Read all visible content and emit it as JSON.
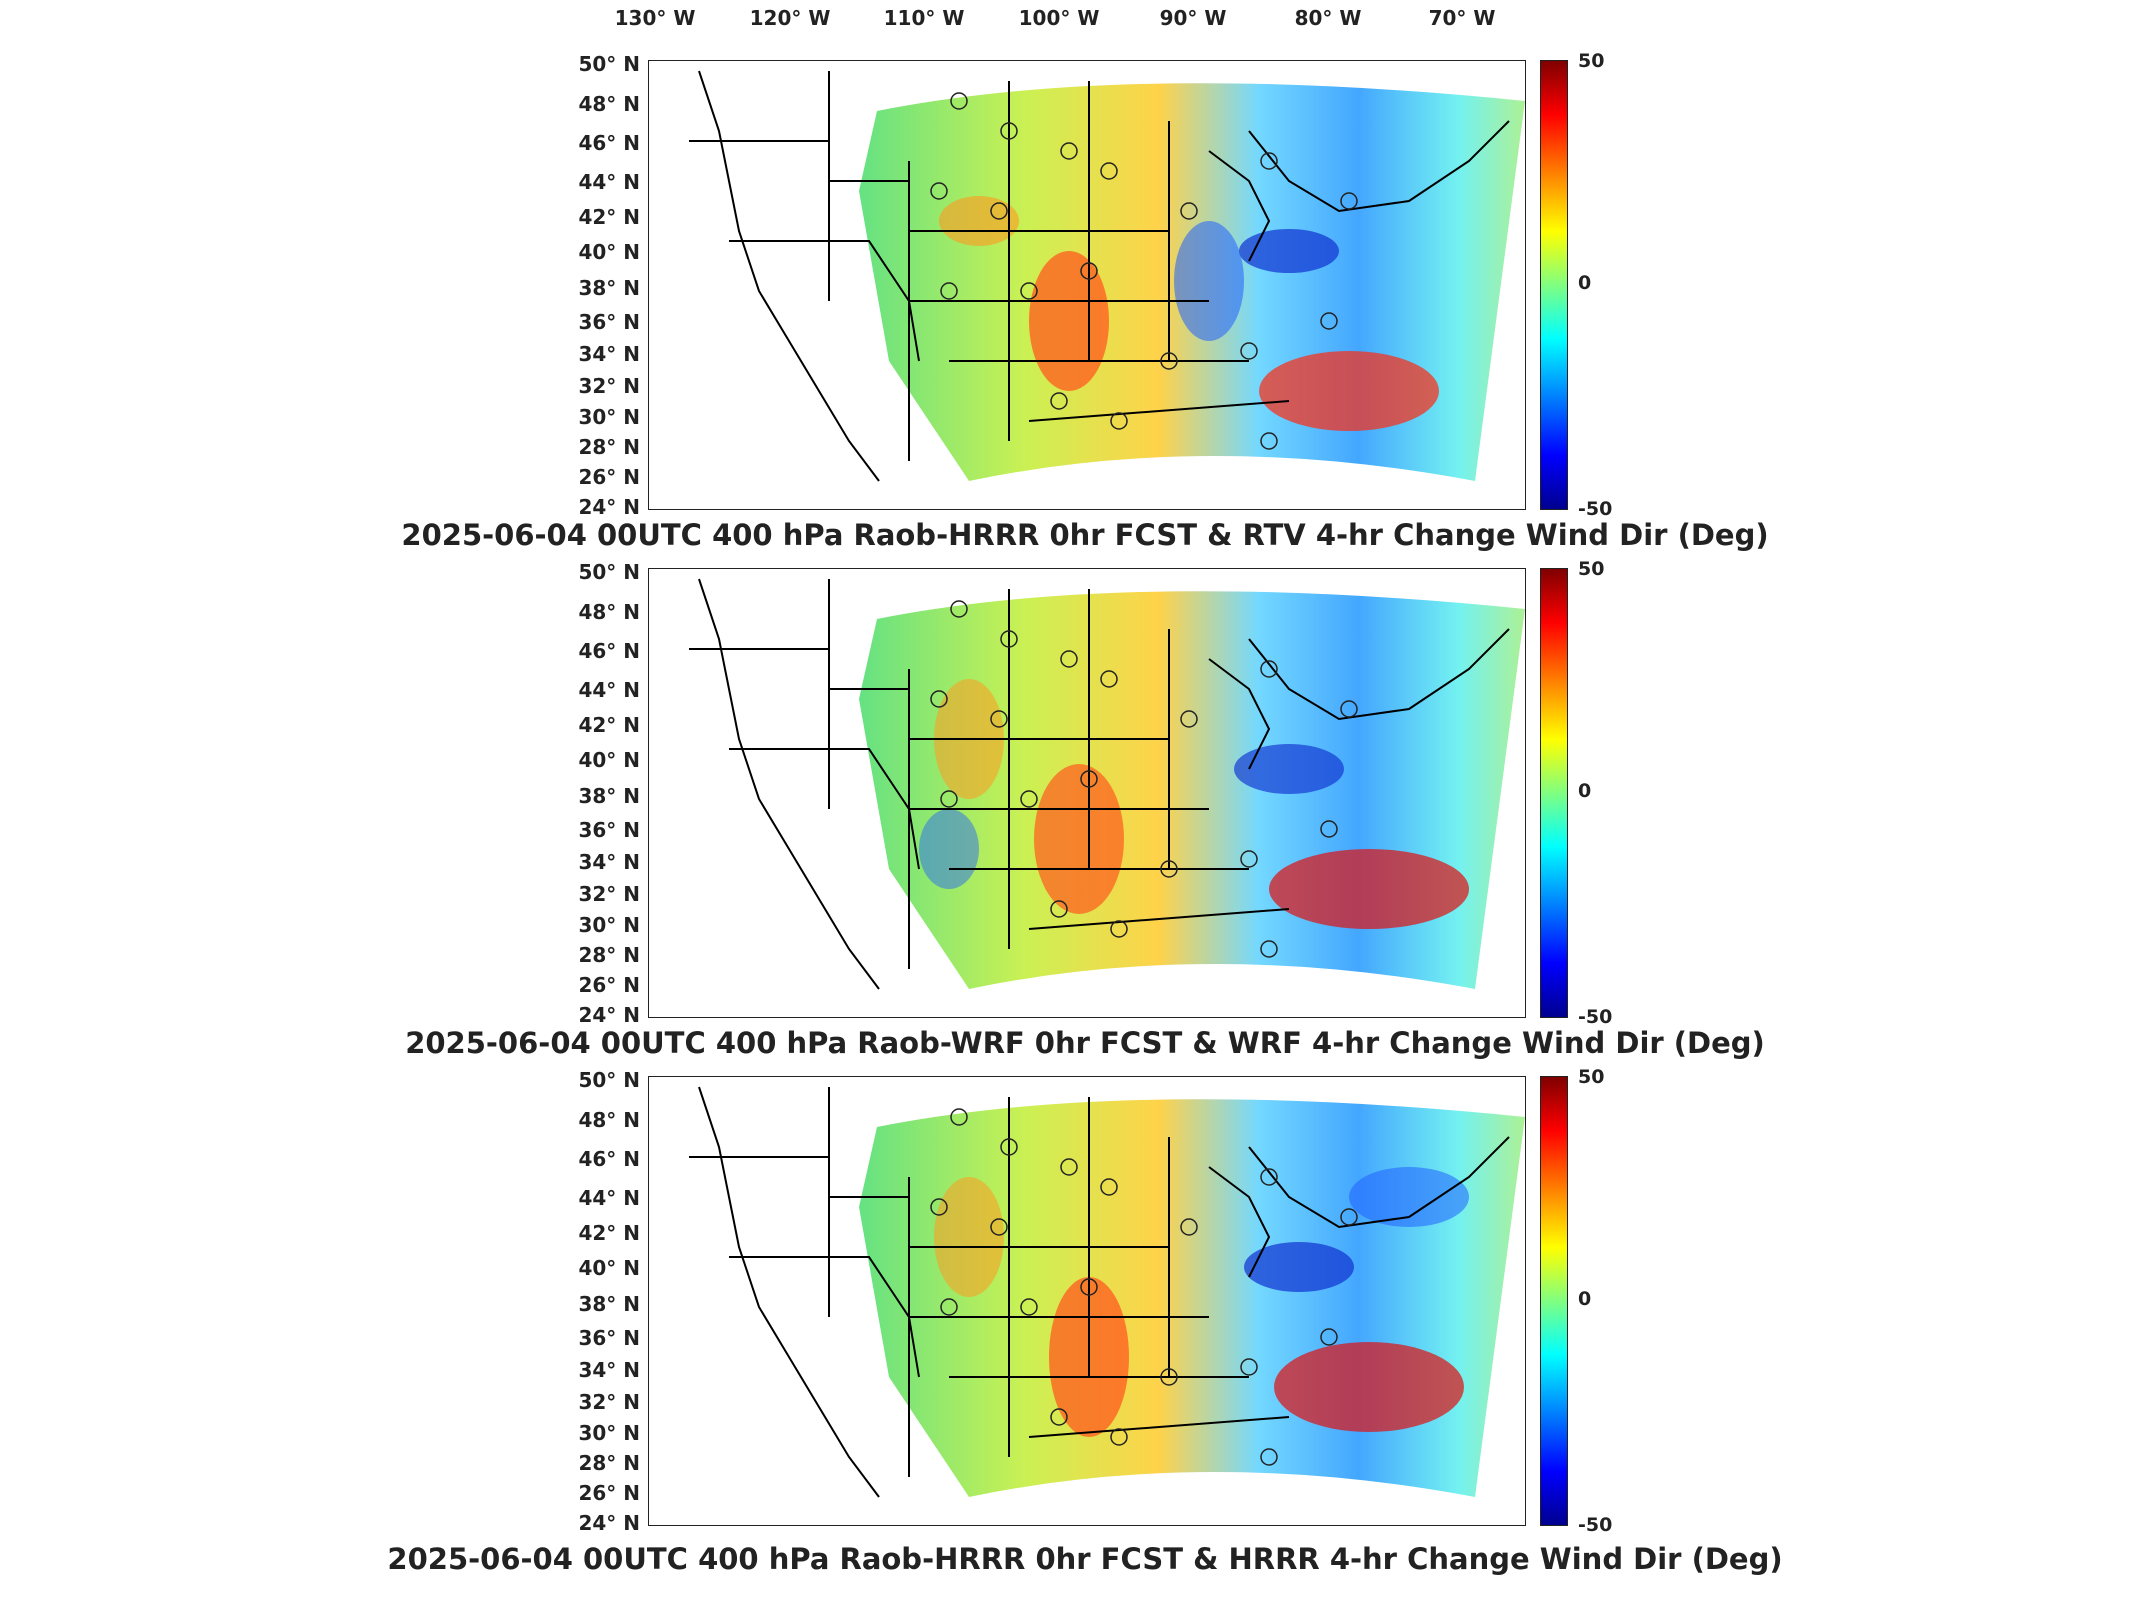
{
  "longitude_labels": [
    "130° W",
    "120° W",
    "110° W",
    "100° W",
    "90° W",
    "80° W",
    "70° W"
  ],
  "latitude_labels": [
    "50° N",
    "48° N",
    "46° N",
    "44° N",
    "42° N",
    "40° N",
    "38° N",
    "36° N",
    "34° N",
    "32° N",
    "30° N",
    "28° N",
    "26° N",
    "24° N"
  ],
  "colorbar": {
    "max_label": "50",
    "mid_label": "0",
    "min_label": "-50",
    "colors": [
      "#800000",
      "#ff0000",
      "#ff8000",
      "#ffff00",
      "#80ff80",
      "#00ffff",
      "#0080ff",
      "#0000ff",
      "#00008f"
    ]
  },
  "panels": [
    {
      "title": "2025-06-04 00UTC 400 hPa Raob-HRRR 0hr FCST & RTV 4-hr Change Wind Dir (Deg)"
    },
    {
      "title": "2025-06-04 00UTC 400 hPa Raob-WRF 0hr FCST & WRF 4-hr Change Wind Dir (Deg)"
    },
    {
      "title": "2025-06-04 00UTC 400 hPa Raob-HRRR 0hr FCST & HRRR 4-hr Change Wind Dir (Deg)"
    }
  ]
}
